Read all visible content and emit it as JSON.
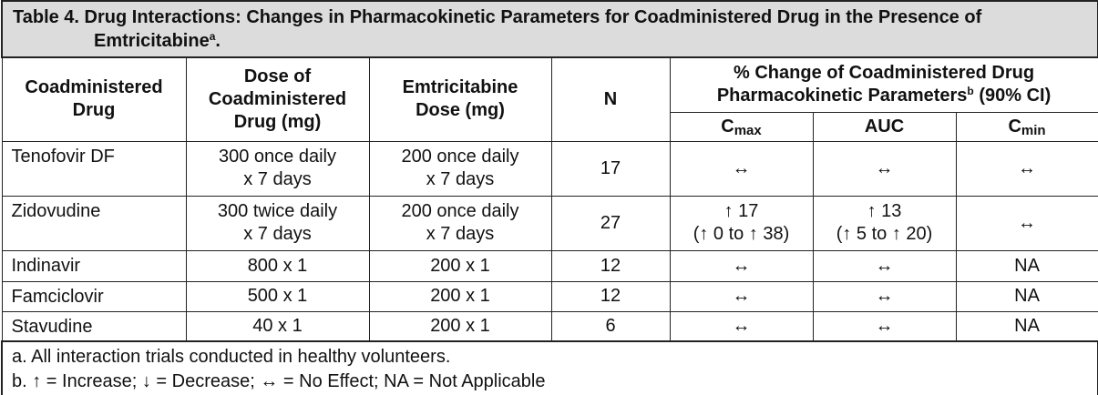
{
  "title": {
    "text": "Table 4. Drug Interactions: Changes in Pharmacokinetic Parameters for Coadministered Drug in the Presence of Emtricitabine",
    "sup": "a",
    "end": "."
  },
  "header": {
    "drug": [
      "Coadministered",
      "Drug"
    ],
    "dose": [
      "Dose of",
      "Coadministered",
      "Drug (mg)"
    ],
    "emtri": [
      "Emtricitabine",
      "Dose (mg)"
    ],
    "n": "N",
    "pk_line1": "% Change of Coadministered Drug",
    "pk_line2": "Pharmacokinetic Parameters",
    "pk_sup": "b",
    "pk_end": "(90% CI)",
    "cmax": {
      "base": "C",
      "sub": "max"
    },
    "auc": "AUC",
    "cmin": {
      "base": "C",
      "sub": "min"
    }
  },
  "rows": [
    [
      "Tenofovir DF",
      [
        "300 once daily",
        "x 7 days"
      ],
      [
        "200 once daily",
        "x 7 days"
      ],
      17,
      "↔",
      "↔",
      "↔"
    ],
    [
      "Zidovudine",
      [
        "300 twice daily",
        "x 7 days"
      ],
      [
        "200 once daily",
        "x 7 days"
      ],
      27,
      [
        "↑ 17",
        "(↑ 0 to ↑ 38)"
      ],
      [
        "↑ 13",
        "(↑ 5 to ↑ 20)"
      ],
      "↔"
    ],
    [
      "Indinavir",
      "800 x 1",
      "200 x 1",
      12,
      "↔",
      "↔",
      "NA"
    ],
    [
      "Famciclovir",
      "500 x 1",
      "200 x 1",
      12,
      "↔",
      "↔",
      "NA"
    ],
    [
      "Stavudine",
      "40 x 1",
      "200 x 1",
      6,
      "↔",
      "↔",
      "NA"
    ]
  ],
  "footnotes": [
    "a. All interaction trials conducted in healthy volunteers.",
    "b. ↑ = Increase; ↓ = Decrease; ↔ = No Effect; NA = Not Applicable"
  ]
}
